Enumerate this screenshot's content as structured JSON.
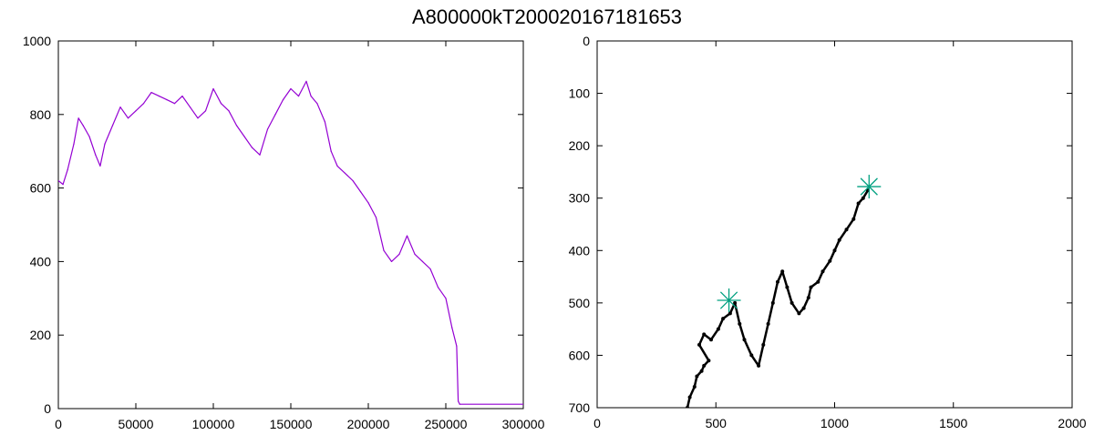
{
  "title": "A800000kT200020167181653",
  "chart_data": [
    {
      "type": "line",
      "title": "",
      "xlabel": "",
      "ylabel": "",
      "xlim": [
        0,
        300000
      ],
      "ylim": [
        0,
        1000
      ],
      "xticks": [
        0,
        50000,
        100000,
        150000,
        200000,
        250000,
        300000
      ],
      "xtick_labels": [
        "0",
        "50000",
        "100000",
        "150000",
        "200000",
        "250000",
        "300000"
      ],
      "yticks": [
        0,
        200,
        400,
        600,
        800,
        1000
      ],
      "ytick_labels": [
        "0",
        "200",
        "400",
        "600",
        "800",
        "1000"
      ],
      "grid": false,
      "legend": "none",
      "series": [
        {
          "color": "#9400d3",
          "x": [
            0,
            3000,
            6000,
            10000,
            13000,
            16000,
            20000,
            24000,
            27000,
            30000,
            35000,
            40000,
            45000,
            50000,
            55000,
            60000,
            65000,
            70000,
            75000,
            80000,
            85000,
            90000,
            95000,
            100000,
            105000,
            110000,
            115000,
            120000,
            125000,
            130000,
            135000,
            140000,
            145000,
            150000,
            155000,
            160000,
            163000,
            167000,
            172000,
            176000,
            180000,
            185000,
            190000,
            195000,
            200000,
            205000,
            210000,
            215000,
            220000,
            225000,
            230000,
            235000,
            240000,
            245000,
            250000,
            254000,
            257000,
            258000,
            259000,
            300000
          ],
          "y": [
            620,
            610,
            650,
            720,
            790,
            770,
            740,
            690,
            660,
            720,
            770,
            820,
            790,
            810,
            830,
            860,
            850,
            840,
            830,
            850,
            820,
            790,
            810,
            870,
            830,
            810,
            770,
            740,
            710,
            690,
            760,
            800,
            840,
            870,
            850,
            890,
            850,
            830,
            780,
            700,
            660,
            640,
            620,
            590,
            560,
            520,
            430,
            400,
            420,
            470,
            420,
            400,
            380,
            330,
            300,
            220,
            170,
            20,
            12,
            12
          ]
        }
      ]
    },
    {
      "type": "scatter",
      "title": "",
      "xlabel": "",
      "ylabel": "",
      "xlim": [
        0,
        2000
      ],
      "ylim": [
        700,
        0
      ],
      "y_inverted": true,
      "xticks": [
        0,
        500,
        1000,
        1500,
        2000
      ],
      "xtick_labels": [
        "0",
        "500",
        "1000",
        "1500",
        "2000"
      ],
      "yticks": [
        0,
        100,
        200,
        300,
        400,
        500,
        600,
        700
      ],
      "ytick_labels": [
        "0",
        "100",
        "200",
        "300",
        "400",
        "500",
        "600",
        "700"
      ],
      "grid": false,
      "legend": "none",
      "series": [
        {
          "color": "#000000",
          "x": [
            380,
            390,
            410,
            420,
            440,
            450,
            470,
            430,
            450,
            480,
            510,
            530,
            560,
            580,
            600,
            620,
            650,
            680,
            700,
            720,
            740,
            760,
            780,
            800,
            820,
            850,
            870,
            890,
            900,
            930,
            950,
            980,
            1000,
            1020,
            1050,
            1080,
            1100,
            1120,
            1140
          ],
          "y": [
            700,
            680,
            660,
            640,
            630,
            620,
            610,
            580,
            560,
            570,
            550,
            530,
            520,
            500,
            540,
            570,
            600,
            620,
            580,
            540,
            500,
            460,
            440,
            470,
            500,
            520,
            510,
            490,
            470,
            460,
            440,
            420,
            400,
            380,
            360,
            340,
            310,
            300,
            285
          ]
        }
      ],
      "markers": [
        {
          "x": 555,
          "y": 495,
          "symbol": "asterisk",
          "color": "#00a080"
        },
        {
          "x": 1145,
          "y": 278,
          "symbol": "asterisk",
          "color": "#00a080"
        }
      ]
    }
  ]
}
